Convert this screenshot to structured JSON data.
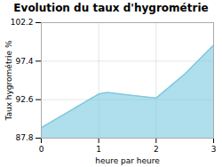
{
  "chart_data": {
    "type": "area",
    "title": "Evolution du taux d'hygrométrie",
    "xlabel": "heure par heure",
    "ylabel": "Taux hygrométrie %",
    "x": [
      0,
      0.5,
      1.0,
      1.15,
      1.5,
      2.0,
      2.5,
      3.0
    ],
    "values": [
      89.1,
      91.2,
      93.3,
      93.5,
      93.2,
      92.8,
      95.8,
      99.4
    ],
    "color": "#7ac8df",
    "line_style": "dotted",
    "xlim": [
      0,
      3
    ],
    "xticks": [
      0,
      1,
      2,
      3
    ],
    "ylim": [
      87.8,
      102.2
    ],
    "yticks": [
      87.8,
      92.6,
      97.4,
      102.2
    ],
    "grid": true
  }
}
